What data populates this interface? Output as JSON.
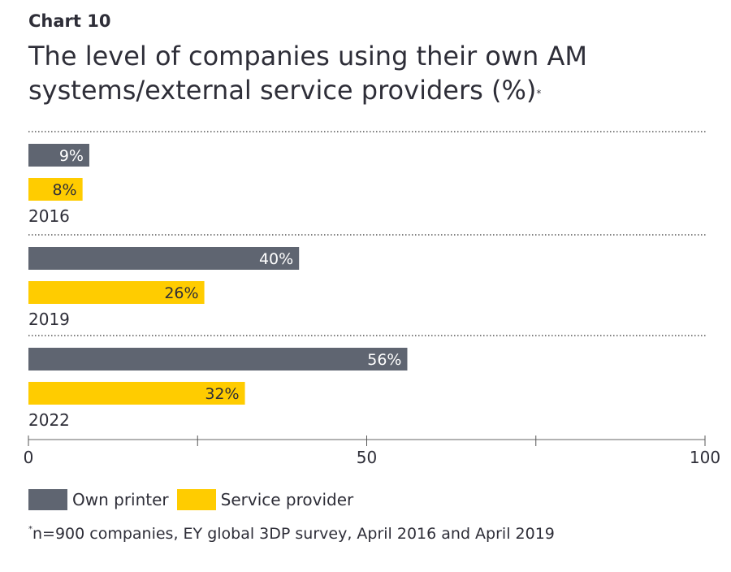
{
  "chart_label": "Chart 10",
  "title": "The level of companies using their own AM systems/external service providers (%)",
  "title_mark": "*",
  "footnote_mark": "*",
  "footnote": "n=900 companies, EY global 3DP survey, April 2016 and April 2019",
  "chart_data": {
    "type": "bar",
    "orientation": "horizontal",
    "categories": [
      "2016",
      "2019",
      "2022"
    ],
    "series": [
      {
        "name": "Own printer",
        "color": "#5f6571",
        "values": [
          9,
          40,
          56
        ],
        "labels": [
          "9%",
          "40%",
          "56%"
        ]
      },
      {
        "name": "Service provider",
        "color": "#ffcc00",
        "values": [
          8,
          26,
          32
        ],
        "labels": [
          "8%",
          "26%",
          "32%"
        ]
      }
    ],
    "xlim": [
      0,
      100
    ],
    "xticks": [
      0,
      25,
      50,
      75,
      100
    ],
    "xtick_labels": [
      "0",
      "",
      "50",
      "",
      "100"
    ],
    "legend_position": "bottom-left",
    "grid": false
  }
}
